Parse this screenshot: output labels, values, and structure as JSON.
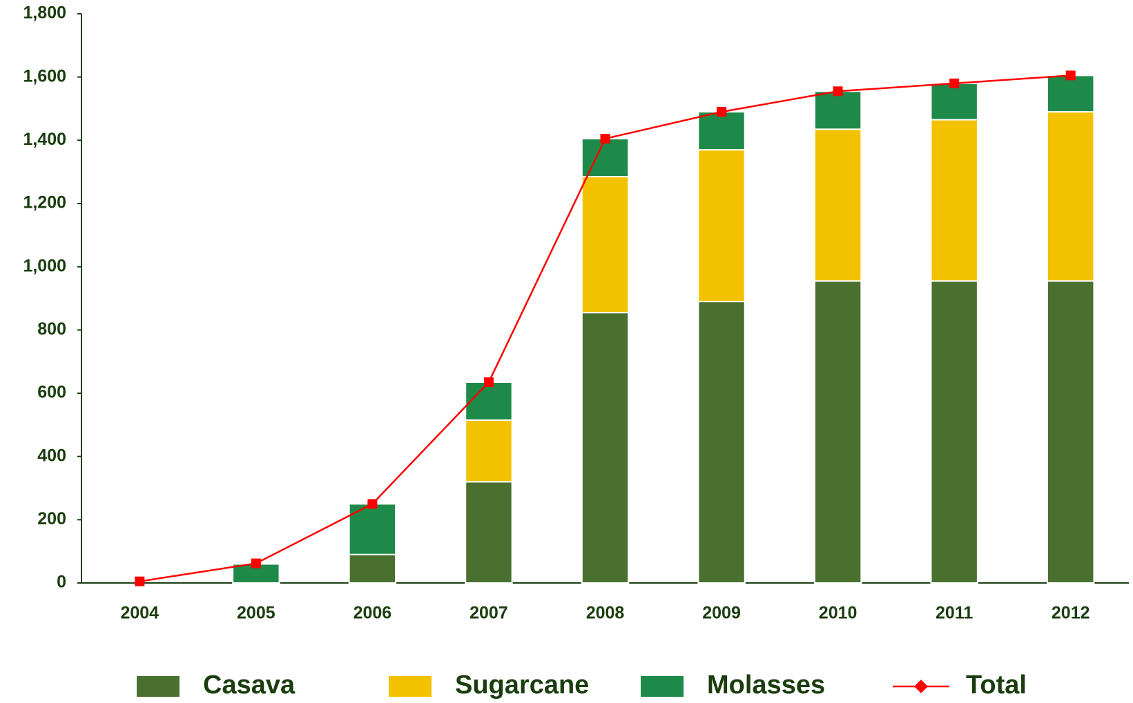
{
  "chart_data": {
    "type": "bar",
    "stacked": true,
    "categories": [
      "2004",
      "2005",
      "2006",
      "2007",
      "2008",
      "2009",
      "2010",
      "2011",
      "2012"
    ],
    "series": [
      {
        "name": "Casava",
        "color": "#4a7030",
        "values": [
          0,
          0,
          90,
          320,
          855,
          890,
          955,
          955,
          955
        ]
      },
      {
        "name": "Sugarcane",
        "color": "#f2c200",
        "values": [
          0,
          0,
          0,
          195,
          430,
          480,
          480,
          510,
          535
        ]
      },
      {
        "name": "Molasses",
        "color": "#1e8a4a",
        "values": [
          0,
          60,
          160,
          120,
          120,
          120,
          120,
          115,
          115
        ]
      },
      {
        "name": "Total",
        "type": "line",
        "color": "#ff0000",
        "values": [
          5,
          62,
          250,
          635,
          1405,
          1490,
          1555,
          1580,
          1605
        ]
      }
    ],
    "ylim": [
      0,
      1800
    ],
    "yticks": [
      0,
      200,
      400,
      600,
      800,
      {
        "value": 1000,
        "label": "1,000"
      },
      {
        "value": 1200,
        "label": "1,200"
      },
      {
        "value": 1400,
        "label": "1,400"
      },
      {
        "value": 1600,
        "label": "1,600"
      },
      {
        "value": 1800,
        "label": "1,800"
      }
    ],
    "legend": "bottom"
  }
}
